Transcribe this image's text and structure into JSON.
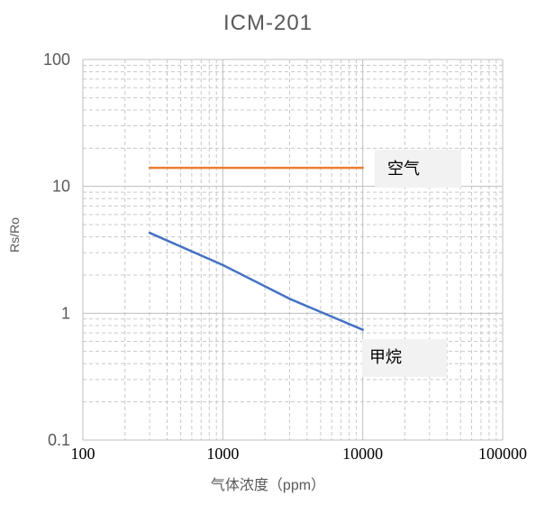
{
  "chart_data": {
    "type": "line",
    "title": "ICM-201",
    "xlabel": "气体浓度（ppm）",
    "ylabel": "Rs/Ro",
    "x_scale": "log",
    "y_scale": "log",
    "xlim": [
      100,
      100000
    ],
    "ylim": [
      0.1,
      100
    ],
    "x_ticks": [
      "100",
      "1000",
      "10000",
      "100000"
    ],
    "y_ticks": [
      "0.1",
      "1",
      "10",
      "100"
    ],
    "grid": true,
    "legend": "none",
    "series": [
      {
        "name": "空气",
        "color": "#ED7D31",
        "x": [
          300,
          10000
        ],
        "y": [
          14,
          14
        ]
      },
      {
        "name": "甲烷",
        "color": "#4472C4",
        "x": [
          300,
          1000,
          3000,
          10000
        ],
        "y": [
          4.3,
          2.4,
          1.3,
          0.74
        ]
      }
    ],
    "annotations": [
      "空气",
      "甲烷"
    ]
  }
}
